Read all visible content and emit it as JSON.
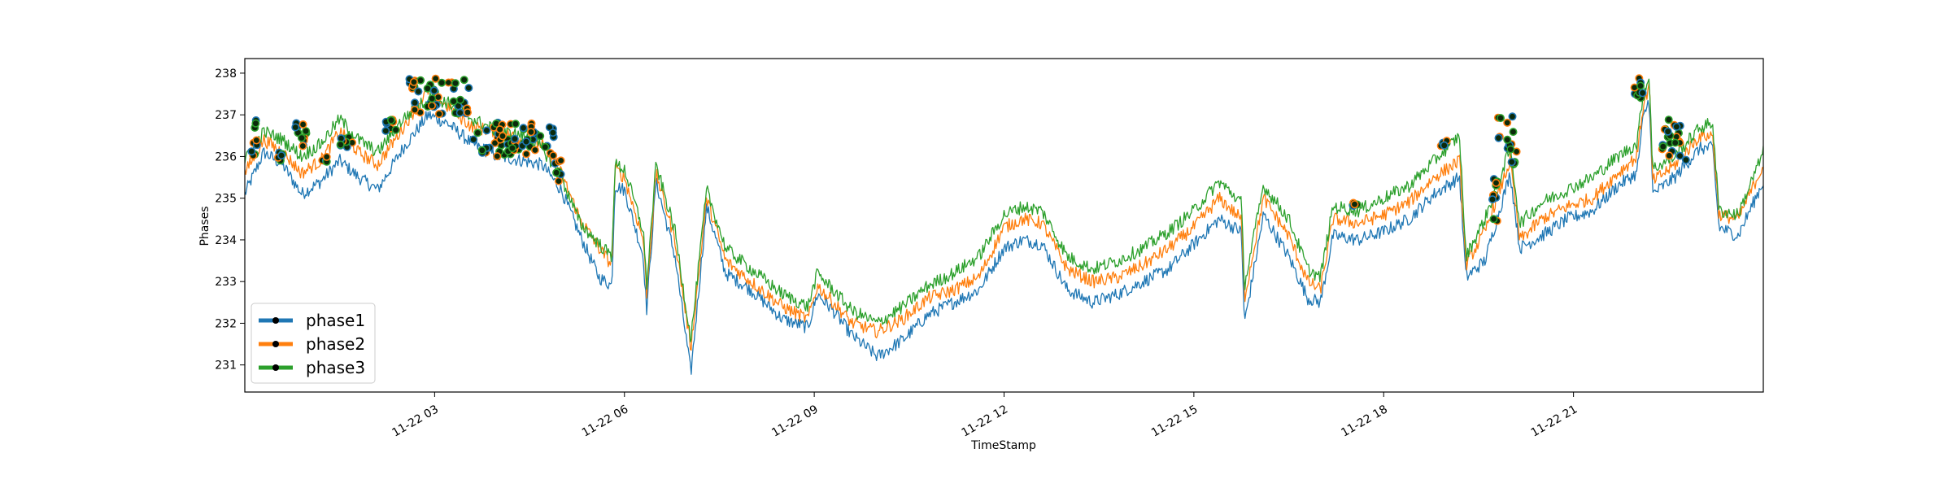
{
  "chart_data": {
    "type": "line",
    "title": "",
    "xlabel": "TimeStamp",
    "ylabel": "Phases",
    "x_range": [
      "11-22 00:00",
      "11-23 00:00"
    ],
    "ylim": [
      230.35,
      238.35
    ],
    "grid": false,
    "legend_position": "lower-left",
    "yticks": [
      231,
      232,
      233,
      234,
      235,
      236,
      237,
      238
    ],
    "xticks": [
      {
        "hour": 3,
        "label": "11-22 03"
      },
      {
        "hour": 6,
        "label": "11-22 06"
      },
      {
        "hour": 9,
        "label": "11-22 09"
      },
      {
        "hour": 12,
        "label": "11-22 12"
      },
      {
        "hour": 15,
        "label": "11-22 15"
      },
      {
        "hour": 18,
        "label": "11-22 18"
      },
      {
        "hour": 21,
        "label": "11-22 21"
      }
    ],
    "series": [
      {
        "name": "phase1",
        "color": "#1f77b4",
        "points": [
          [
            0,
            235.1
          ],
          [
            0.3,
            236.1
          ],
          [
            0.6,
            235.8
          ],
          [
            0.9,
            235.1
          ],
          [
            1.2,
            235.4
          ],
          [
            1.5,
            235.9
          ],
          [
            1.8,
            235.5
          ],
          [
            2.1,
            235.2
          ],
          [
            2.5,
            236.2
          ],
          [
            2.9,
            237.0
          ],
          [
            3.2,
            236.8
          ],
          [
            3.6,
            236.3
          ],
          [
            4.0,
            236.0
          ],
          [
            4.4,
            235.9
          ],
          [
            4.7,
            235.8
          ],
          [
            5.0,
            235.2
          ],
          [
            5.3,
            234.1
          ],
          [
            5.6,
            233.1
          ],
          [
            5.8,
            232.9
          ],
          [
            5.85,
            235.3
          ],
          [
            6.0,
            235.2
          ],
          [
            6.3,
            233.6
          ],
          [
            6.35,
            232.3
          ],
          [
            6.5,
            235.4
          ],
          [
            6.8,
            233.6
          ],
          [
            7.05,
            230.8
          ],
          [
            7.3,
            234.8
          ],
          [
            7.6,
            233.2
          ],
          [
            8.0,
            232.8
          ],
          [
            8.5,
            232.1
          ],
          [
            8.9,
            231.9
          ],
          [
            9.05,
            232.7
          ],
          [
            9.3,
            232.3
          ],
          [
            9.6,
            231.7
          ],
          [
            10.0,
            231.2
          ],
          [
            10.4,
            231.6
          ],
          [
            10.8,
            232.2
          ],
          [
            11.2,
            232.5
          ],
          [
            11.6,
            232.8
          ],
          [
            12.0,
            233.8
          ],
          [
            12.3,
            234.0
          ],
          [
            12.6,
            233.9
          ],
          [
            13.0,
            232.8
          ],
          [
            13.4,
            232.5
          ],
          [
            13.8,
            232.7
          ],
          [
            14.2,
            233.0
          ],
          [
            14.6,
            233.3
          ],
          [
            15.0,
            233.9
          ],
          [
            15.4,
            234.5
          ],
          [
            15.75,
            234.2
          ],
          [
            15.8,
            232.0
          ],
          [
            16.1,
            234.6
          ],
          [
            16.5,
            233.6
          ],
          [
            16.8,
            232.6
          ],
          [
            17.0,
            232.5
          ],
          [
            17.2,
            234.1
          ],
          [
            17.6,
            234.0
          ],
          [
            18.0,
            234.2
          ],
          [
            18.4,
            234.5
          ],
          [
            18.8,
            235.1
          ],
          [
            19.2,
            235.5
          ],
          [
            19.3,
            233.1
          ],
          [
            19.6,
            233.5
          ],
          [
            20.0,
            235.6
          ],
          [
            20.15,
            233.8
          ],
          [
            20.5,
            234.1
          ],
          [
            20.9,
            234.5
          ],
          [
            21.3,
            234.7
          ],
          [
            21.7,
            235.3
          ],
          [
            22.0,
            235.6
          ],
          [
            22.1,
            236.9
          ],
          [
            22.2,
            237.4
          ],
          [
            22.25,
            235.1
          ],
          [
            22.6,
            235.5
          ],
          [
            23.0,
            236.2
          ],
          [
            23.2,
            236.2
          ],
          [
            23.3,
            234.3
          ],
          [
            23.6,
            234.1
          ],
          [
            24.0,
            235.4
          ]
        ]
      },
      {
        "name": "phase2",
        "color": "#ff7f0e",
        "points": [
          [
            0,
            235.6
          ],
          [
            0.3,
            236.4
          ],
          [
            0.6,
            236.1
          ],
          [
            0.9,
            235.6
          ],
          [
            1.2,
            235.9
          ],
          [
            1.5,
            236.6
          ],
          [
            1.8,
            236.1
          ],
          [
            2.1,
            235.8
          ],
          [
            2.5,
            236.7
          ],
          [
            2.9,
            237.6
          ],
          [
            3.2,
            237.2
          ],
          [
            3.6,
            236.7
          ],
          [
            4.0,
            236.6
          ],
          [
            4.4,
            236.4
          ],
          [
            4.7,
            236.3
          ],
          [
            5.0,
            235.6
          ],
          [
            5.3,
            234.5
          ],
          [
            5.6,
            233.8
          ],
          [
            5.8,
            233.4
          ],
          [
            5.85,
            235.7
          ],
          [
            6.0,
            235.5
          ],
          [
            6.3,
            234.0
          ],
          [
            6.35,
            232.7
          ],
          [
            6.5,
            235.6
          ],
          [
            6.8,
            234.0
          ],
          [
            7.05,
            231.4
          ],
          [
            7.3,
            235.0
          ],
          [
            7.6,
            233.5
          ],
          [
            8.0,
            233.0
          ],
          [
            8.5,
            232.4
          ],
          [
            8.9,
            232.1
          ],
          [
            9.05,
            232.9
          ],
          [
            9.3,
            232.5
          ],
          [
            9.6,
            232.0
          ],
          [
            10.0,
            231.8
          ],
          [
            10.4,
            232.1
          ],
          [
            10.8,
            232.6
          ],
          [
            11.2,
            232.8
          ],
          [
            11.6,
            233.1
          ],
          [
            12.0,
            234.3
          ],
          [
            12.3,
            234.5
          ],
          [
            12.6,
            234.4
          ],
          [
            13.0,
            233.3
          ],
          [
            13.4,
            233.0
          ],
          [
            13.8,
            233.1
          ],
          [
            14.2,
            233.4
          ],
          [
            14.6,
            233.8
          ],
          [
            15.0,
            234.3
          ],
          [
            15.4,
            235.0
          ],
          [
            15.75,
            234.5
          ],
          [
            15.8,
            232.6
          ],
          [
            16.1,
            235.0
          ],
          [
            16.5,
            234.1
          ],
          [
            16.8,
            233.0
          ],
          [
            17.0,
            232.8
          ],
          [
            17.2,
            234.5
          ],
          [
            17.6,
            234.4
          ],
          [
            18.0,
            234.6
          ],
          [
            18.4,
            234.9
          ],
          [
            18.8,
            235.5
          ],
          [
            19.2,
            235.9
          ],
          [
            19.3,
            233.4
          ],
          [
            19.6,
            234.2
          ],
          [
            20.0,
            235.9
          ],
          [
            20.15,
            234.0
          ],
          [
            20.5,
            234.5
          ],
          [
            20.9,
            234.8
          ],
          [
            21.3,
            235.0
          ],
          [
            21.7,
            235.6
          ],
          [
            22.0,
            236.0
          ],
          [
            22.1,
            237.2
          ],
          [
            22.2,
            237.7
          ],
          [
            22.25,
            235.4
          ],
          [
            22.6,
            235.8
          ],
          [
            23.0,
            236.5
          ],
          [
            23.2,
            236.5
          ],
          [
            23.3,
            234.6
          ],
          [
            23.6,
            234.5
          ],
          [
            24.0,
            235.8
          ]
        ]
      },
      {
        "name": "phase3",
        "color": "#2ca02c",
        "points": [
          [
            0,
            235.9
          ],
          [
            0.3,
            236.6
          ],
          [
            0.6,
            236.4
          ],
          [
            0.9,
            236.0
          ],
          [
            1.2,
            236.3
          ],
          [
            1.5,
            236.9
          ],
          [
            1.8,
            236.4
          ],
          [
            2.1,
            236.1
          ],
          [
            2.5,
            236.9
          ],
          [
            2.9,
            237.4
          ],
          [
            3.2,
            237.3
          ],
          [
            3.6,
            236.9
          ],
          [
            4.0,
            236.6
          ],
          [
            4.4,
            236.5
          ],
          [
            4.7,
            236.2
          ],
          [
            5.0,
            235.5
          ],
          [
            5.3,
            234.4
          ],
          [
            5.6,
            233.9
          ],
          [
            5.8,
            233.6
          ],
          [
            5.85,
            235.8
          ],
          [
            6.0,
            235.7
          ],
          [
            6.3,
            234.2
          ],
          [
            6.35,
            232.9
          ],
          [
            6.5,
            235.8
          ],
          [
            6.8,
            234.2
          ],
          [
            7.05,
            231.6
          ],
          [
            7.3,
            235.2
          ],
          [
            7.6,
            233.8
          ],
          [
            8.0,
            233.3
          ],
          [
            8.5,
            232.7
          ],
          [
            8.9,
            232.4
          ],
          [
            9.05,
            233.2
          ],
          [
            9.3,
            232.8
          ],
          [
            9.6,
            232.3
          ],
          [
            10.0,
            232.0
          ],
          [
            10.4,
            232.4
          ],
          [
            10.8,
            232.9
          ],
          [
            11.2,
            233.2
          ],
          [
            11.6,
            233.6
          ],
          [
            12.0,
            234.6
          ],
          [
            12.3,
            234.8
          ],
          [
            12.6,
            234.7
          ],
          [
            13.0,
            233.6
          ],
          [
            13.4,
            233.3
          ],
          [
            13.8,
            233.5
          ],
          [
            14.2,
            233.8
          ],
          [
            14.6,
            234.2
          ],
          [
            15.0,
            234.7
          ],
          [
            15.4,
            235.4
          ],
          [
            15.75,
            234.9
          ],
          [
            15.8,
            232.9
          ],
          [
            16.1,
            235.3
          ],
          [
            16.5,
            234.5
          ],
          [
            16.8,
            233.3
          ],
          [
            17.0,
            233.1
          ],
          [
            17.2,
            234.8
          ],
          [
            17.6,
            234.7
          ],
          [
            18.0,
            235.0
          ],
          [
            18.4,
            235.3
          ],
          [
            18.8,
            235.9
          ],
          [
            19.2,
            236.5
          ],
          [
            19.3,
            233.6
          ],
          [
            19.6,
            234.5
          ],
          [
            20.0,
            236.2
          ],
          [
            20.15,
            234.4
          ],
          [
            20.5,
            234.9
          ],
          [
            20.9,
            235.2
          ],
          [
            21.3,
            235.5
          ],
          [
            21.7,
            236.0
          ],
          [
            22.0,
            236.3
          ],
          [
            22.1,
            237.5
          ],
          [
            22.2,
            237.9
          ],
          [
            22.25,
            235.7
          ],
          [
            22.6,
            236.0
          ],
          [
            23.0,
            236.7
          ],
          [
            23.2,
            236.8
          ],
          [
            23.3,
            234.7
          ],
          [
            23.6,
            234.6
          ],
          [
            24.0,
            236.1
          ]
        ]
      }
    ],
    "marker_clusters": [
      {
        "hour_start": 0.1,
        "hour_end": 0.2,
        "y_min": 236.0,
        "y_max": 236.9
      },
      {
        "hour_start": 0.5,
        "hour_end": 0.6,
        "y_min": 235.9,
        "y_max": 236.2
      },
      {
        "hour_start": 0.8,
        "hour_end": 1.0,
        "y_min": 236.2,
        "y_max": 236.8
      },
      {
        "hour_start": 1.2,
        "hour_end": 1.3,
        "y_min": 235.8,
        "y_max": 236.0
      },
      {
        "hour_start": 1.5,
        "hour_end": 1.7,
        "y_min": 236.2,
        "y_max": 236.5
      },
      {
        "hour_start": 2.2,
        "hour_end": 2.4,
        "y_min": 236.6,
        "y_max": 236.9
      },
      {
        "hour_start": 2.6,
        "hour_end": 3.6,
        "y_min": 237.0,
        "y_max": 237.9
      },
      {
        "hour_start": 3.6,
        "hour_end": 4.2,
        "y_min": 236.0,
        "y_max": 236.9
      },
      {
        "hour_start": 4.2,
        "hour_end": 4.9,
        "y_min": 236.0,
        "y_max": 236.8
      },
      {
        "hour_start": 4.9,
        "hour_end": 5.0,
        "y_min": 235.4,
        "y_max": 236.0
      },
      {
        "hour_start": 17.5,
        "hour_end": 17.6,
        "y_min": 234.8,
        "y_max": 234.9
      },
      {
        "hour_start": 18.9,
        "hour_end": 19.0,
        "y_min": 236.1,
        "y_max": 236.4
      },
      {
        "hour_start": 19.7,
        "hour_end": 19.8,
        "y_min": 234.4,
        "y_max": 235.5
      },
      {
        "hour_start": 19.8,
        "hour_end": 20.1,
        "y_min": 235.8,
        "y_max": 237.0
      },
      {
        "hour_start": 21.95,
        "hour_end": 22.1,
        "y_min": 237.3,
        "y_max": 237.9
      },
      {
        "hour_start": 22.4,
        "hour_end": 22.8,
        "y_min": 235.9,
        "y_max": 236.9
      }
    ]
  }
}
